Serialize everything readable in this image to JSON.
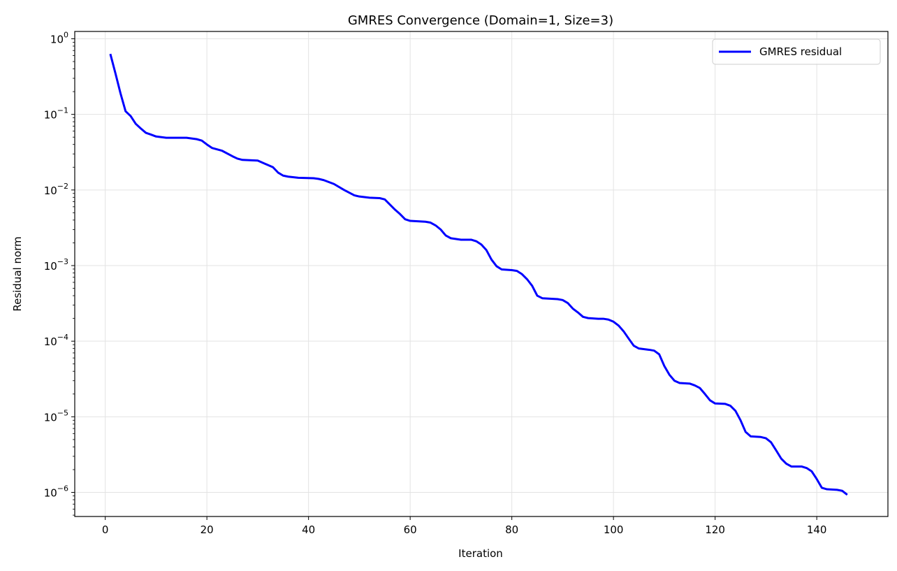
{
  "chart_data": {
    "type": "line",
    "title": "GMRES Convergence (Domain=1, Size=3)",
    "xlabel": "Iteration",
    "ylabel": "Residual norm",
    "xlim": [
      -6,
      154
    ],
    "ylim": [
      4.8e-07,
      1.25
    ],
    "y_scale": "log",
    "grid": true,
    "legend_position": "top-right",
    "x_ticks": [
      0,
      20,
      40,
      60,
      80,
      100,
      120,
      140
    ],
    "x_tick_labels": [
      "0",
      "20",
      "40",
      "60",
      "80",
      "100",
      "120",
      "140"
    ],
    "y_ticks": [
      1e-06,
      1e-05,
      0.0001,
      0.001,
      0.01,
      0.1,
      1
    ],
    "y_tick_labels": [
      {
        "base": "10",
        "exp": "−6"
      },
      {
        "base": "10",
        "exp": "−5"
      },
      {
        "base": "10",
        "exp": "−4"
      },
      {
        "base": "10",
        "exp": "−3"
      },
      {
        "base": "10",
        "exp": "−2"
      },
      {
        "base": "10",
        "exp": "−1"
      },
      {
        "base": "10",
        "exp": "0"
      }
    ],
    "series": [
      {
        "name": "GMRES residual",
        "color": "#0000ff",
        "points": [
          [
            1,
            0.63
          ],
          [
            2,
            0.35
          ],
          [
            3,
            0.19
          ],
          [
            4,
            0.11
          ],
          [
            5,
            0.095
          ],
          [
            6,
            0.075
          ],
          [
            7,
            0.065
          ],
          [
            8,
            0.057
          ],
          [
            9,
            0.054
          ],
          [
            10,
            0.051
          ],
          [
            12,
            0.049
          ],
          [
            14,
            0.049
          ],
          [
            16,
            0.049
          ],
          [
            18,
            0.047
          ],
          [
            19,
            0.045
          ],
          [
            20,
            0.04
          ],
          [
            21,
            0.036
          ],
          [
            23,
            0.033
          ],
          [
            25,
            0.028
          ],
          [
            26,
            0.026
          ],
          [
            27,
            0.025
          ],
          [
            30,
            0.0245
          ],
          [
            33,
            0.02
          ],
          [
            34,
            0.017
          ],
          [
            35,
            0.0155
          ],
          [
            36,
            0.015
          ],
          [
            38,
            0.0145
          ],
          [
            41,
            0.0143
          ],
          [
            42,
            0.014
          ],
          [
            43,
            0.0135
          ],
          [
            45,
            0.012
          ],
          [
            47,
            0.01
          ],
          [
            49,
            0.0085
          ],
          [
            50,
            0.0082
          ],
          [
            52,
            0.0079
          ],
          [
            54,
            0.0078
          ],
          [
            55,
            0.0075
          ],
          [
            57,
            0.0055
          ],
          [
            58,
            0.0048
          ],
          [
            59,
            0.0041
          ],
          [
            60,
            0.0039
          ],
          [
            63,
            0.0038
          ],
          [
            64,
            0.0037
          ],
          [
            65,
            0.0034
          ],
          [
            66,
            0.003
          ],
          [
            67,
            0.0025
          ],
          [
            68,
            0.0023
          ],
          [
            70,
            0.0022
          ],
          [
            72,
            0.0022
          ],
          [
            73,
            0.0021
          ],
          [
            74,
            0.0019
          ],
          [
            75,
            0.0016
          ],
          [
            76,
            0.0012
          ],
          [
            77,
            0.00098
          ],
          [
            78,
            0.00089
          ],
          [
            80,
            0.00087
          ],
          [
            81,
            0.00085
          ],
          [
            82,
            0.00077
          ],
          [
            83,
            0.00066
          ],
          [
            84,
            0.00054
          ],
          [
            85,
            0.0004
          ],
          [
            86,
            0.00037
          ],
          [
            89,
            0.00036
          ],
          [
            90,
            0.00035
          ],
          [
            91,
            0.00032
          ],
          [
            92,
            0.00027
          ],
          [
            93,
            0.00024
          ],
          [
            94,
            0.00021
          ],
          [
            95,
            0.000202
          ],
          [
            97,
            0.000198
          ],
          [
            98,
            0.000198
          ],
          [
            99,
            0.000193
          ],
          [
            100,
            0.000181
          ],
          [
            101,
            0.000161
          ],
          [
            102,
            0.000135
          ],
          [
            103,
            0.000108
          ],
          [
            104,
            8.7e-05
          ],
          [
            105,
            8e-05
          ],
          [
            107,
            7.7e-05
          ],
          [
            108,
            7.5e-05
          ],
          [
            109,
            6.7e-05
          ],
          [
            110,
            4.7e-05
          ],
          [
            111,
            3.6e-05
          ],
          [
            112,
            3e-05
          ],
          [
            113,
            2.8e-05
          ],
          [
            115,
            2.75e-05
          ],
          [
            116,
            2.6e-05
          ],
          [
            117,
            2.4e-05
          ],
          [
            118,
            2e-05
          ],
          [
            119,
            1.65e-05
          ],
          [
            120,
            1.5e-05
          ],
          [
            122,
            1.48e-05
          ],
          [
            123,
            1.4e-05
          ],
          [
            124,
            1.2e-05
          ],
          [
            125,
            9e-06
          ],
          [
            126,
            6.3e-06
          ],
          [
            127,
            5.5e-06
          ],
          [
            129,
            5.4e-06
          ],
          [
            130,
            5.2e-06
          ],
          [
            131,
            4.6e-06
          ],
          [
            132,
            3.6e-06
          ],
          [
            133,
            2.8e-06
          ],
          [
            134,
            2.4e-06
          ],
          [
            135,
            2.2e-06
          ],
          [
            137,
            2.2e-06
          ],
          [
            138,
            2.1e-06
          ],
          [
            139,
            1.9e-06
          ],
          [
            140,
            1.5e-06
          ],
          [
            141,
            1.15e-06
          ],
          [
            142,
            1.1e-06
          ],
          [
            144,
            1.08e-06
          ],
          [
            145,
            1.05e-06
          ],
          [
            146,
            9.3e-07
          ]
        ]
      }
    ]
  }
}
